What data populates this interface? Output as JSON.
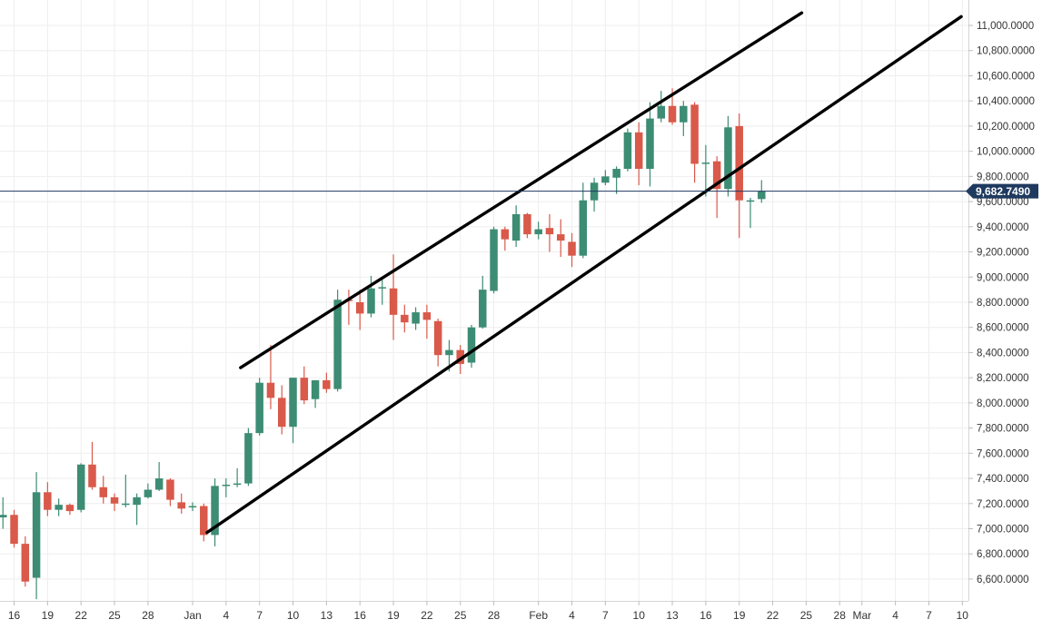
{
  "chart_data": {
    "type": "candlestick",
    "y_axis": {
      "range": [
        6400,
        11100
      ],
      "ticks": [
        "11,000.0000",
        "10,800.0000",
        "10,600.0000",
        "10,400.0000",
        "10,200.0000",
        "10,000.0000",
        "9,800.0000",
        "9,600.0000",
        "9,400.0000",
        "9,200.0000",
        "9,000.0000",
        "8,800.0000",
        "8,600.0000",
        "8,400.0000",
        "8,200.0000",
        "8,000.0000",
        "7,800.0000",
        "7,600.0000",
        "7,400.0000",
        "7,200.0000",
        "7,000.0000",
        "6,800.0000",
        "6,600.0000"
      ],
      "tick_values": [
        11000,
        10800,
        10600,
        10400,
        10200,
        10000,
        9800,
        9600,
        9400,
        9200,
        9000,
        8800,
        8600,
        8400,
        8200,
        8000,
        7800,
        7600,
        7400,
        7200,
        7000,
        6800,
        6600
      ]
    },
    "x_axis": {
      "ticks": [
        "16",
        "19",
        "22",
        "25",
        "28",
        "Jan",
        "4",
        "7",
        "10",
        "13",
        "16",
        "19",
        "22",
        "25",
        "28",
        "Feb",
        "4",
        "7",
        "10",
        "13",
        "16",
        "19",
        "22",
        "25",
        "28",
        "Mar",
        "4",
        "7",
        "10"
      ],
      "tick_days": [
        -16,
        -13,
        -10,
        -7,
        -4,
        0,
        3,
        6,
        9,
        12,
        15,
        18,
        21,
        24,
        27,
        31,
        34,
        37,
        40,
        43,
        46,
        49,
        52,
        55,
        58,
        60,
        63,
        66,
        69
      ]
    },
    "current_price": {
      "value": 9682.749,
      "label": "9,682.7490"
    },
    "colors": {
      "up": "#26a69a",
      "down": "#ef5350",
      "up_candle": "#3d8c74",
      "down_candle": "#d9594a",
      "price_line": "#1f3a5f",
      "label_bg": "#1f3a5f",
      "grid": "#eeeeee",
      "channel": "#000000"
    },
    "candles": [
      {
        "d": -17,
        "o": 7090,
        "h": 7250,
        "l": 7000,
        "c": 7110
      },
      {
        "d": -16,
        "o": 7110,
        "h": 7150,
        "l": 6850,
        "c": 6880
      },
      {
        "d": -15,
        "o": 6880,
        "h": 6940,
        "l": 6540,
        "c": 6580
      },
      {
        "d": -14,
        "o": 6610,
        "h": 7450,
        "l": 6440,
        "c": 7290
      },
      {
        "d": -13,
        "o": 7290,
        "h": 7370,
        "l": 7100,
        "c": 7150
      },
      {
        "d": -12,
        "o": 7150,
        "h": 7240,
        "l": 7100,
        "c": 7190
      },
      {
        "d": -11,
        "o": 7190,
        "h": 7200,
        "l": 7110,
        "c": 7140
      },
      {
        "d": -10,
        "o": 7150,
        "h": 7520,
        "l": 7130,
        "c": 7510
      },
      {
        "d": -9,
        "o": 7510,
        "h": 7690,
        "l": 7310,
        "c": 7330
      },
      {
        "d": -8,
        "o": 7330,
        "h": 7420,
        "l": 7200,
        "c": 7250
      },
      {
        "d": -7,
        "o": 7250,
        "h": 7280,
        "l": 7140,
        "c": 7200
      },
      {
        "d": -6,
        "o": 7200,
        "h": 7430,
        "l": 7170,
        "c": 7200
      },
      {
        "d": -5,
        "o": 7190,
        "h": 7280,
        "l": 7030,
        "c": 7250
      },
      {
        "d": -4,
        "o": 7250,
        "h": 7360,
        "l": 7240,
        "c": 7310
      },
      {
        "d": -3,
        "o": 7310,
        "h": 7530,
        "l": 7300,
        "c": 7400
      },
      {
        "d": -2,
        "o": 7390,
        "h": 7400,
        "l": 7180,
        "c": 7230
      },
      {
        "d": -1,
        "o": 7210,
        "h": 7280,
        "l": 7120,
        "c": 7160
      },
      {
        "d": 0,
        "o": 7170,
        "h": 7210,
        "l": 7140,
        "c": 7180
      },
      {
        "d": 1,
        "o": 7180,
        "h": 7200,
        "l": 6900,
        "c": 6950
      },
      {
        "d": 2,
        "o": 6950,
        "h": 7400,
        "l": 6860,
        "c": 7340
      },
      {
        "d": 3,
        "o": 7340,
        "h": 7400,
        "l": 7250,
        "c": 7350
      },
      {
        "d": 4,
        "o": 7350,
        "h": 7480,
        "l": 7330,
        "c": 7360
      },
      {
        "d": 5,
        "o": 7360,
        "h": 7800,
        "l": 7340,
        "c": 7760
      },
      {
        "d": 6,
        "o": 7760,
        "h": 8200,
        "l": 7740,
        "c": 8160
      },
      {
        "d": 7,
        "o": 8160,
        "h": 8460,
        "l": 7950,
        "c": 8040
      },
      {
        "d": 8,
        "o": 8040,
        "h": 8140,
        "l": 7750,
        "c": 7810
      },
      {
        "d": 9,
        "o": 7810,
        "h": 8200,
        "l": 7680,
        "c": 8200
      },
      {
        "d": 10,
        "o": 8200,
        "h": 8290,
        "l": 7990,
        "c": 8020
      },
      {
        "d": 11,
        "o": 8030,
        "h": 8180,
        "l": 7960,
        "c": 8180
      },
      {
        "d": 12,
        "o": 8180,
        "h": 8240,
        "l": 8080,
        "c": 8110
      },
      {
        "d": 13,
        "o": 8110,
        "h": 8900,
        "l": 8090,
        "c": 8820
      },
      {
        "d": 14,
        "o": 8820,
        "h": 8900,
        "l": 8620,
        "c": 8810
      },
      {
        "d": 15,
        "o": 8800,
        "h": 8900,
        "l": 8580,
        "c": 8710
      },
      {
        "d": 16,
        "o": 8710,
        "h": 9010,
        "l": 8680,
        "c": 8910
      },
      {
        "d": 17,
        "o": 8920,
        "h": 8980,
        "l": 8780,
        "c": 8920
      },
      {
        "d": 18,
        "o": 8910,
        "h": 9180,
        "l": 8500,
        "c": 8700
      },
      {
        "d": 19,
        "o": 8700,
        "h": 8780,
        "l": 8560,
        "c": 8640
      },
      {
        "d": 20,
        "o": 8630,
        "h": 8760,
        "l": 8580,
        "c": 8720
      },
      {
        "d": 21,
        "o": 8720,
        "h": 8780,
        "l": 8510,
        "c": 8660
      },
      {
        "d": 22,
        "o": 8650,
        "h": 8670,
        "l": 8290,
        "c": 8380
      },
      {
        "d": 23,
        "o": 8380,
        "h": 8500,
        "l": 8250,
        "c": 8420
      },
      {
        "d": 24,
        "o": 8420,
        "h": 8460,
        "l": 8230,
        "c": 8310
      },
      {
        "d": 25,
        "o": 8320,
        "h": 8620,
        "l": 8280,
        "c": 8600
      },
      {
        "d": 26,
        "o": 8600,
        "h": 9010,
        "l": 8590,
        "c": 8900
      },
      {
        "d": 27,
        "o": 8890,
        "h": 9400,
        "l": 8870,
        "c": 9380
      },
      {
        "d": 28,
        "o": 9380,
        "h": 9400,
        "l": 9210,
        "c": 9300
      },
      {
        "d": 29,
        "o": 9290,
        "h": 9570,
        "l": 9240,
        "c": 9500
      },
      {
        "d": 30,
        "o": 9500,
        "h": 9510,
        "l": 9310,
        "c": 9340
      },
      {
        "d": 31,
        "o": 9340,
        "h": 9440,
        "l": 9300,
        "c": 9380
      },
      {
        "d": 32,
        "o": 9390,
        "h": 9500,
        "l": 9200,
        "c": 9340
      },
      {
        "d": 33,
        "o": 9340,
        "h": 9460,
        "l": 9160,
        "c": 9290
      },
      {
        "d": 34,
        "o": 9280,
        "h": 9350,
        "l": 9080,
        "c": 9170
      },
      {
        "d": 35,
        "o": 9170,
        "h": 9750,
        "l": 9150,
        "c": 9610
      },
      {
        "d": 36,
        "o": 9610,
        "h": 9790,
        "l": 9520,
        "c": 9750
      },
      {
        "d": 37,
        "o": 9750,
        "h": 9850,
        "l": 9730,
        "c": 9800
      },
      {
        "d": 38,
        "o": 9790,
        "h": 9880,
        "l": 9660,
        "c": 9860
      },
      {
        "d": 39,
        "o": 9860,
        "h": 10180,
        "l": 9840,
        "c": 10150
      },
      {
        "d": 40,
        "o": 10150,
        "h": 10230,
        "l": 9730,
        "c": 9860
      },
      {
        "d": 41,
        "o": 9860,
        "h": 10390,
        "l": 9720,
        "c": 10260
      },
      {
        "d": 42,
        "o": 10260,
        "h": 10480,
        "l": 10230,
        "c": 10360
      },
      {
        "d": 43,
        "o": 10360,
        "h": 10500,
        "l": 10210,
        "c": 10230
      },
      {
        "d": 44,
        "o": 10230,
        "h": 10400,
        "l": 10120,
        "c": 10360
      },
      {
        "d": 45,
        "o": 10370,
        "h": 10390,
        "l": 9750,
        "c": 9900
      },
      {
        "d": 46,
        "o": 9900,
        "h": 10050,
        "l": 9640,
        "c": 9910
      },
      {
        "d": 47,
        "o": 9920,
        "h": 9960,
        "l": 9470,
        "c": 9700
      },
      {
        "d": 48,
        "o": 9700,
        "h": 10280,
        "l": 9640,
        "c": 10190
      },
      {
        "d": 49,
        "o": 10200,
        "h": 10300,
        "l": 9310,
        "c": 9610
      },
      {
        "d": 50,
        "o": 9600,
        "h": 9630,
        "l": 9390,
        "c": 9610
      },
      {
        "d": 51,
        "o": 9620,
        "h": 9770,
        "l": 9590,
        "c": 9683
      }
    ],
    "channel_lines": [
      {
        "name": "upper",
        "p1": {
          "d": 4.3,
          "v": 8280
        },
        "p2": {
          "d": 54.6,
          "v": 11100
        }
      },
      {
        "name": "lower",
        "p1": {
          "d": 1.3,
          "v": 6970
        },
        "p2": {
          "d": 68.9,
          "v": 11070
        }
      }
    ]
  }
}
